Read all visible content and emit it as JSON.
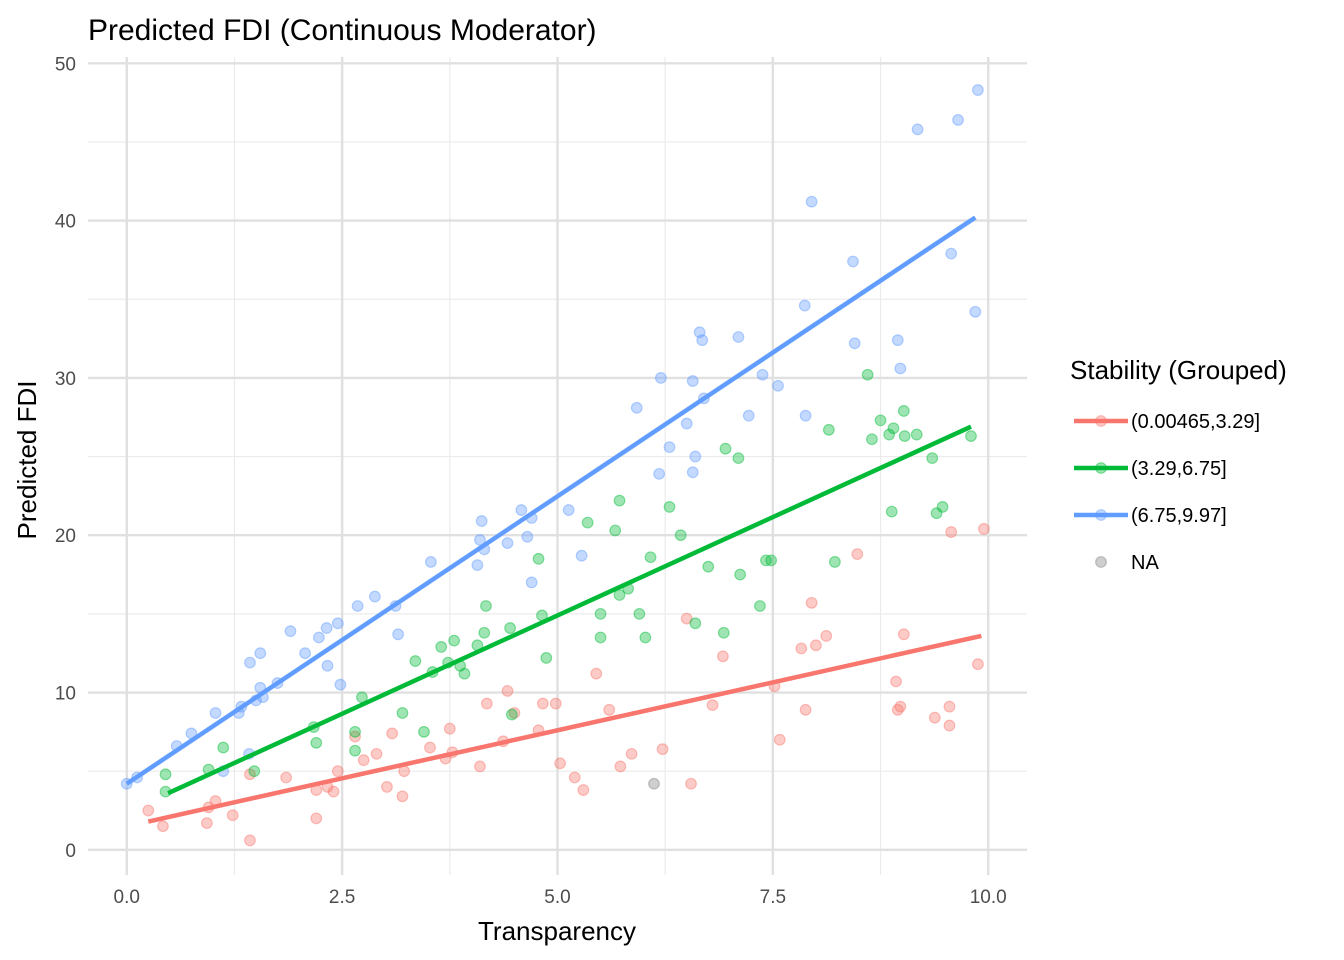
{
  "chart_data": {
    "type": "scatter",
    "title": "Predicted FDI (Continuous Moderator)",
    "xlabel": "Transparency",
    "ylabel": "Predicted FDI",
    "xlim": [
      -0.45,
      10.45
    ],
    "ylim": [
      -1.6,
      50.4
    ],
    "x_ticks": [
      0.0,
      2.5,
      5.0,
      7.5,
      10.0
    ],
    "x_tick_labels": [
      "0.0",
      "2.5",
      "5.0",
      "7.5",
      "10.0"
    ],
    "y_ticks": [
      0,
      10,
      20,
      30,
      40,
      50
    ],
    "y_tick_labels": [
      "0",
      "10",
      "20",
      "30",
      "40",
      "50"
    ],
    "grid": true,
    "legend": {
      "title": "Stability (Grouped)",
      "position": "right"
    },
    "series": [
      {
        "name": "(0.00465,3.29]",
        "color": "#F8766D",
        "fit": {
          "x": [
            0.25,
            9.92
          ],
          "y": [
            1.8,
            13.6
          ]
        },
        "points": [
          [
            0.25,
            2.5
          ],
          [
            0.42,
            1.5
          ],
          [
            0.93,
            1.7
          ],
          [
            0.95,
            2.7
          ],
          [
            1.03,
            3.1
          ],
          [
            1.23,
            2.2
          ],
          [
            1.43,
            4.8
          ],
          [
            1.43,
            0.6
          ],
          [
            1.85,
            4.6
          ],
          [
            2.2,
            2.0
          ],
          [
            2.2,
            3.8
          ],
          [
            2.33,
            4.0
          ],
          [
            2.4,
            3.7
          ],
          [
            2.45,
            5.0
          ],
          [
            2.65,
            7.2
          ],
          [
            2.75,
            5.7
          ],
          [
            2.9,
            6.1
          ],
          [
            3.02,
            4.0
          ],
          [
            3.08,
            7.4
          ],
          [
            3.2,
            3.4
          ],
          [
            3.22,
            5.0
          ],
          [
            3.52,
            6.5
          ],
          [
            3.7,
            5.8
          ],
          [
            3.75,
            7.7
          ],
          [
            3.78,
            6.2
          ],
          [
            4.1,
            5.3
          ],
          [
            4.18,
            9.3
          ],
          [
            4.37,
            6.9
          ],
          [
            4.42,
            10.1
          ],
          [
            4.5,
            8.7
          ],
          [
            4.78,
            7.6
          ],
          [
            4.83,
            9.3
          ],
          [
            4.98,
            9.3
          ],
          [
            5.03,
            5.5
          ],
          [
            5.2,
            4.6
          ],
          [
            5.3,
            3.8
          ],
          [
            5.45,
            11.2
          ],
          [
            5.6,
            8.9
          ],
          [
            5.73,
            5.3
          ],
          [
            5.86,
            6.1
          ],
          [
            6.22,
            6.4
          ],
          [
            6.5,
            14.7
          ],
          [
            6.55,
            4.2
          ],
          [
            6.8,
            9.2
          ],
          [
            6.92,
            12.3
          ],
          [
            7.58,
            7.0
          ],
          [
            7.52,
            10.4
          ],
          [
            7.83,
            12.8
          ],
          [
            7.88,
            8.9
          ],
          [
            7.95,
            15.7
          ],
          [
            8.0,
            13.0
          ],
          [
            8.12,
            13.6
          ],
          [
            8.48,
            18.8
          ],
          [
            8.93,
            10.7
          ],
          [
            8.95,
            8.9
          ],
          [
            8.98,
            9.1
          ],
          [
            9.02,
            13.7
          ],
          [
            9.38,
            8.4
          ],
          [
            9.55,
            9.1
          ],
          [
            9.55,
            7.9
          ],
          [
            9.57,
            20.2
          ],
          [
            9.88,
            11.8
          ],
          [
            9.95,
            20.4
          ]
        ]
      },
      {
        "name": "(3.29,6.75]",
        "color": "#00BA38",
        "fit": {
          "x": [
            0.48,
            9.8
          ],
          "y": [
            3.6,
            26.9
          ]
        },
        "points": [
          [
            0.45,
            4.8
          ],
          [
            0.45,
            3.7
          ],
          [
            0.95,
            5.1
          ],
          [
            1.12,
            6.5
          ],
          [
            1.48,
            5.0
          ],
          [
            2.17,
            7.8
          ],
          [
            2.2,
            6.8
          ],
          [
            2.65,
            7.5
          ],
          [
            2.65,
            6.3
          ],
          [
            2.73,
            9.7
          ],
          [
            3.2,
            8.7
          ],
          [
            3.35,
            12.0
          ],
          [
            3.45,
            7.5
          ],
          [
            3.55,
            11.3
          ],
          [
            3.65,
            12.9
          ],
          [
            3.73,
            11.9
          ],
          [
            3.8,
            13.3
          ],
          [
            3.87,
            11.7
          ],
          [
            3.92,
            11.2
          ],
          [
            4.07,
            13.0
          ],
          [
            4.15,
            13.8
          ],
          [
            4.17,
            15.5
          ],
          [
            4.45,
            14.1
          ],
          [
            4.47,
            8.6
          ],
          [
            4.78,
            18.5
          ],
          [
            4.82,
            14.9
          ],
          [
            4.87,
            12.2
          ],
          [
            5.35,
            20.8
          ],
          [
            5.5,
            15.0
          ],
          [
            5.5,
            13.5
          ],
          [
            5.67,
            20.3
          ],
          [
            5.72,
            22.2
          ],
          [
            5.72,
            16.2
          ],
          [
            5.82,
            16.6
          ],
          [
            5.95,
            15.0
          ],
          [
            6.02,
            13.5
          ],
          [
            6.08,
            18.6
          ],
          [
            6.3,
            21.8
          ],
          [
            6.43,
            20.0
          ],
          [
            6.6,
            14.4
          ],
          [
            6.75,
            18.0
          ],
          [
            6.93,
            13.8
          ],
          [
            6.95,
            25.5
          ],
          [
            7.1,
            24.9
          ],
          [
            7.12,
            17.5
          ],
          [
            7.35,
            15.5
          ],
          [
            7.42,
            18.4
          ],
          [
            7.48,
            18.4
          ],
          [
            8.15,
            26.7
          ],
          [
            8.22,
            18.3
          ],
          [
            8.6,
            30.2
          ],
          [
            8.65,
            26.1
          ],
          [
            8.75,
            27.3
          ],
          [
            8.85,
            26.4
          ],
          [
            8.88,
            21.5
          ],
          [
            8.9,
            26.8
          ],
          [
            9.02,
            27.9
          ],
          [
            9.03,
            26.3
          ],
          [
            9.17,
            26.4
          ],
          [
            9.35,
            24.9
          ],
          [
            9.4,
            21.4
          ],
          [
            9.47,
            21.8
          ],
          [
            9.8,
            26.3
          ]
        ]
      },
      {
        "name": "(6.75,9.97]",
        "color": "#619CFF",
        "fit": {
          "x": [
            0.0,
            9.85
          ],
          "y": [
            4.2,
            40.2
          ]
        },
        "points": [
          [
            0.0,
            4.2
          ],
          [
            0.12,
            4.6
          ],
          [
            0.58,
            6.6
          ],
          [
            0.75,
            7.4
          ],
          [
            1.03,
            8.7
          ],
          [
            1.12,
            5.0
          ],
          [
            1.3,
            8.7
          ],
          [
            1.33,
            9.1
          ],
          [
            1.42,
            6.1
          ],
          [
            1.43,
            11.9
          ],
          [
            1.5,
            9.5
          ],
          [
            1.55,
            12.5
          ],
          [
            1.55,
            10.3
          ],
          [
            1.58,
            9.7
          ],
          [
            1.75,
            10.6
          ],
          [
            1.9,
            13.9
          ],
          [
            2.07,
            12.5
          ],
          [
            2.23,
            13.5
          ],
          [
            2.32,
            14.1
          ],
          [
            2.33,
            11.7
          ],
          [
            2.45,
            14.4
          ],
          [
            2.48,
            10.5
          ],
          [
            2.68,
            15.5
          ],
          [
            2.88,
            16.1
          ],
          [
            3.12,
            15.5
          ],
          [
            3.15,
            13.7
          ],
          [
            3.53,
            18.3
          ],
          [
            4.07,
            18.1
          ],
          [
            4.1,
            19.7
          ],
          [
            4.12,
            20.9
          ],
          [
            4.15,
            19.1
          ],
          [
            4.42,
            19.5
          ],
          [
            4.58,
            21.6
          ],
          [
            4.65,
            19.9
          ],
          [
            4.7,
            21.1
          ],
          [
            4.7,
            17.0
          ],
          [
            5.13,
            21.6
          ],
          [
            5.28,
            18.7
          ],
          [
            5.92,
            28.1
          ],
          [
            6.18,
            23.9
          ],
          [
            6.2,
            30.0
          ],
          [
            6.3,
            25.6
          ],
          [
            6.5,
            27.1
          ],
          [
            6.57,
            24.0
          ],
          [
            6.57,
            29.8
          ],
          [
            6.6,
            25.0
          ],
          [
            6.65,
            32.9
          ],
          [
            6.68,
            32.4
          ],
          [
            6.7,
            28.7
          ],
          [
            7.1,
            32.6
          ],
          [
            7.22,
            27.6
          ],
          [
            7.38,
            30.2
          ],
          [
            7.56,
            29.5
          ],
          [
            7.87,
            34.6
          ],
          [
            7.88,
            27.6
          ],
          [
            7.95,
            41.2
          ],
          [
            8.43,
            37.4
          ],
          [
            8.45,
            32.2
          ],
          [
            8.95,
            32.4
          ],
          [
            8.98,
            30.6
          ],
          [
            9.18,
            45.8
          ],
          [
            9.57,
            37.9
          ],
          [
            9.65,
            46.4
          ],
          [
            9.85,
            34.2
          ],
          [
            9.88,
            48.3
          ]
        ]
      },
      {
        "name": "NA",
        "color": "#808080",
        "points": [
          [
            6.12,
            4.2
          ]
        ]
      }
    ]
  }
}
